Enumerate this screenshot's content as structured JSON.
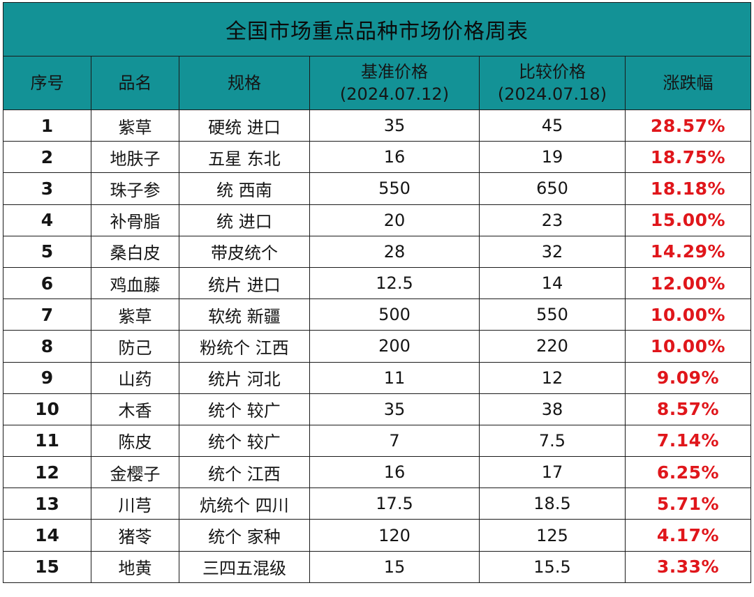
{
  "title": "全国市场重点品种市场价格周表",
  "headers": {
    "index": "序号",
    "name": "品名",
    "spec": "规格",
    "base_price": "基准价格",
    "base_date": "(2024.07.12)",
    "compare_price": "比较价格",
    "compare_date": "(2024.07.18)",
    "change": "涨跌幅"
  },
  "rows": [
    {
      "index": "1",
      "name": "紫草",
      "spec": "硬统 进口",
      "base": "35",
      "compare": "45",
      "change": "28.57%"
    },
    {
      "index": "2",
      "name": "地肤子",
      "spec": "五星 东北",
      "base": "16",
      "compare": "19",
      "change": "18.75%"
    },
    {
      "index": "3",
      "name": "珠子参",
      "spec": "统 西南",
      "base": "550",
      "compare": "650",
      "change": "18.18%"
    },
    {
      "index": "4",
      "name": "补骨脂",
      "spec": "统 进口",
      "base": "20",
      "compare": "23",
      "change": "15.00%"
    },
    {
      "index": "5",
      "name": "桑白皮",
      "spec": "带皮统个",
      "base": "28",
      "compare": "32",
      "change": "14.29%"
    },
    {
      "index": "6",
      "name": "鸡血藤",
      "spec": "统片 进口",
      "base": "12.5",
      "compare": "14",
      "change": "12.00%"
    },
    {
      "index": "7",
      "name": "紫草",
      "spec": "软统 新疆",
      "base": "500",
      "compare": "550",
      "change": "10.00%"
    },
    {
      "index": "8",
      "name": "防己",
      "spec": "粉统个 江西",
      "base": "200",
      "compare": "220",
      "change": "10.00%"
    },
    {
      "index": "9",
      "name": "山药",
      "spec": "统片 河北",
      "base": "11",
      "compare": "12",
      "change": "9.09%"
    },
    {
      "index": "10",
      "name": "木香",
      "spec": "统个 较广",
      "base": "35",
      "compare": "38",
      "change": "8.57%"
    },
    {
      "index": "11",
      "name": "陈皮",
      "spec": "统个 较广",
      "base": "7",
      "compare": "7.5",
      "change": "7.14%"
    },
    {
      "index": "12",
      "name": "金樱子",
      "spec": "统个 江西",
      "base": "16",
      "compare": "17",
      "change": "6.25%"
    },
    {
      "index": "13",
      "name": "川芎",
      "spec": "炕统个 四川",
      "base": "17.5",
      "compare": "18.5",
      "change": "5.71%"
    },
    {
      "index": "14",
      "name": "猪苓",
      "spec": "统个 家种",
      "base": "120",
      "compare": "125",
      "change": "4.17%"
    },
    {
      "index": "15",
      "name": "地黄",
      "spec": "三四五混级",
      "base": "15",
      "compare": "15.5",
      "change": "3.33%"
    }
  ],
  "colors": {
    "header_bg": "#139296",
    "change_text": "#e0161b"
  }
}
